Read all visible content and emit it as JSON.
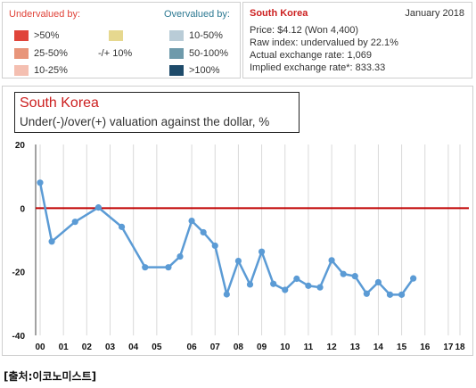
{
  "legend": {
    "undervalued_heading": "Undervalued by:",
    "overvalued_heading": "Overvalued by:",
    "items": [
      {
        "label": ">50%",
        "color": "#e0443a"
      },
      {
        "label": "25-50%",
        "color": "#e8957a"
      },
      {
        "label": "10-25%",
        "color": "#f4bfb1"
      },
      {
        "label": "-/+ 10%",
        "color": "#e6d88f"
      },
      {
        "label": "10-50%",
        "color": "#b9ccd7"
      },
      {
        "label": "50-100%",
        "color": "#6e9aab"
      },
      {
        "label": ">100%",
        "color": "#1e4b6a"
      }
    ],
    "undervalued_color": "#e0443a",
    "overvalued_color": "#2e7a93"
  },
  "info": {
    "country": "South Korea",
    "date": "January 2018",
    "lines": [
      "Price: $4.12 (Won 4,400)",
      "Raw index: undervalued by 22.1%",
      "Actual exchange rate: 1,069",
      "Implied exchange rate*: 833.33"
    ],
    "accent_color": "#cc1f1f"
  },
  "source": "[출처:이코노미스트]",
  "chart_data": {
    "type": "line",
    "title": "South Korea",
    "subtitle": "Under(-)/over(+) valuation against the dollar, %",
    "ylim": [
      -40,
      20
    ],
    "yticks": [
      20,
      0,
      -20,
      -40
    ],
    "x_range": [
      2000,
      2018
    ],
    "xticks": [
      {
        "label": "00",
        "x": 2000.0
      },
      {
        "label": "01",
        "x": 2001.0
      },
      {
        "label": "02",
        "x": 2002.0
      },
      {
        "label": "03",
        "x": 2003.0
      },
      {
        "label": "04",
        "x": 2004.0
      },
      {
        "label": "05",
        "x": 2005.0
      },
      {
        "label": "06",
        "x": 2006.5
      },
      {
        "label": "07",
        "x": 2007.5
      },
      {
        "label": "08",
        "x": 2008.5
      },
      {
        "label": "09",
        "x": 2009.5
      },
      {
        "label": "10",
        "x": 2010.5
      },
      {
        "label": "11",
        "x": 2011.5
      },
      {
        "label": "12",
        "x": 2012.5
      },
      {
        "label": "13",
        "x": 2013.5
      },
      {
        "label": "14",
        "x": 2014.5
      },
      {
        "label": "15",
        "x": 2015.5
      },
      {
        "label": "16",
        "x": 2016.5
      },
      {
        "label": "17",
        "x": 2017.5
      },
      {
        "label": "18",
        "x": 2018.0
      }
    ],
    "zero_line_color": "#c00000",
    "series": [
      {
        "color": "#5b9bd5",
        "points": [
          [
            2000.0,
            8
          ],
          [
            2000.5,
            -10.5
          ],
          [
            2001.5,
            -4.3
          ],
          [
            2002.5,
            0.2
          ],
          [
            2003.5,
            -5.9
          ],
          [
            2004.5,
            -18.6
          ],
          [
            2005.5,
            -18.6
          ],
          [
            2006.0,
            -15.2
          ],
          [
            2006.5,
            -4
          ],
          [
            2007.0,
            -7.6
          ],
          [
            2007.5,
            -11.8
          ],
          [
            2008.0,
            -27.1
          ],
          [
            2008.5,
            -16.6
          ],
          [
            2009.0,
            -24
          ],
          [
            2009.5,
            -13.7
          ],
          [
            2010.0,
            -23.8
          ],
          [
            2010.5,
            -25.7
          ],
          [
            2011.0,
            -22.2
          ],
          [
            2011.5,
            -24.4
          ],
          [
            2012.0,
            -24.9
          ],
          [
            2012.5,
            -16.4
          ],
          [
            2013.0,
            -20.7
          ],
          [
            2013.5,
            -21.4
          ],
          [
            2014.0,
            -26.9
          ],
          [
            2014.5,
            -23.3
          ],
          [
            2015.0,
            -27.2
          ],
          [
            2015.5,
            -27.2
          ],
          [
            2016.0,
            -22.1
          ]
        ]
      }
    ],
    "grid": "vertical",
    "grid_color": "#d9d9d9"
  }
}
